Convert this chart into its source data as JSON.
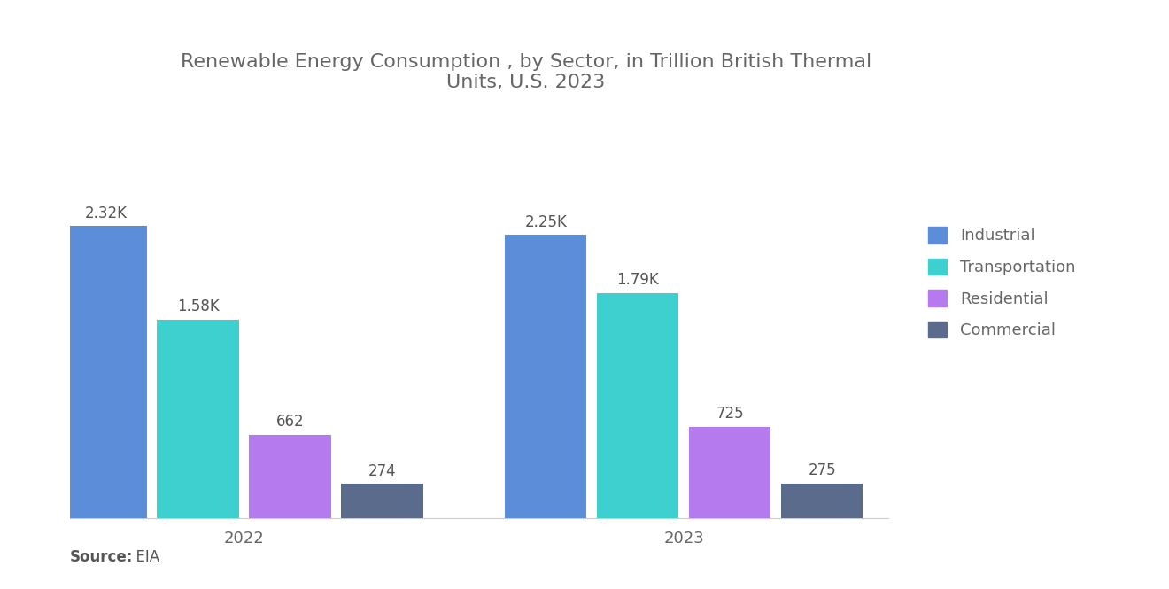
{
  "title": "Renewable Energy Consumption , by Sector, in Trillion British Thermal\nUnits, U.S. 2023",
  "title_fontsize": 16,
  "title_color": "#666666",
  "years": [
    "2022",
    "2023"
  ],
  "categories": [
    "Industrial",
    "Transportation",
    "Residential",
    "Commercial"
  ],
  "values": {
    "2022": [
      2320,
      1580,
      662,
      274
    ],
    "2023": [
      2250,
      1790,
      725,
      275
    ]
  },
  "labels": {
    "2022": [
      "2.32K",
      "1.58K",
      "662",
      "274"
    ],
    "2023": [
      "2.25K",
      "1.79K",
      "725",
      "275"
    ]
  },
  "colors": [
    "#5B8DD9",
    "#3ECFCF",
    "#B57BEE",
    "#5A6B8C"
  ],
  "bar_width": 0.08,
  "background_color": "#FFFFFF",
  "source_label_bold": "Source:",
  "source_label_normal": "  EIA",
  "legend_labels": [
    "Industrial",
    "Transportation",
    "Residential",
    "Commercial"
  ],
  "ylim": [
    0,
    2900
  ],
  "label_fontsize": 12,
  "tick_fontsize": 13,
  "legend_fontsize": 13,
  "source_fontsize": 12
}
